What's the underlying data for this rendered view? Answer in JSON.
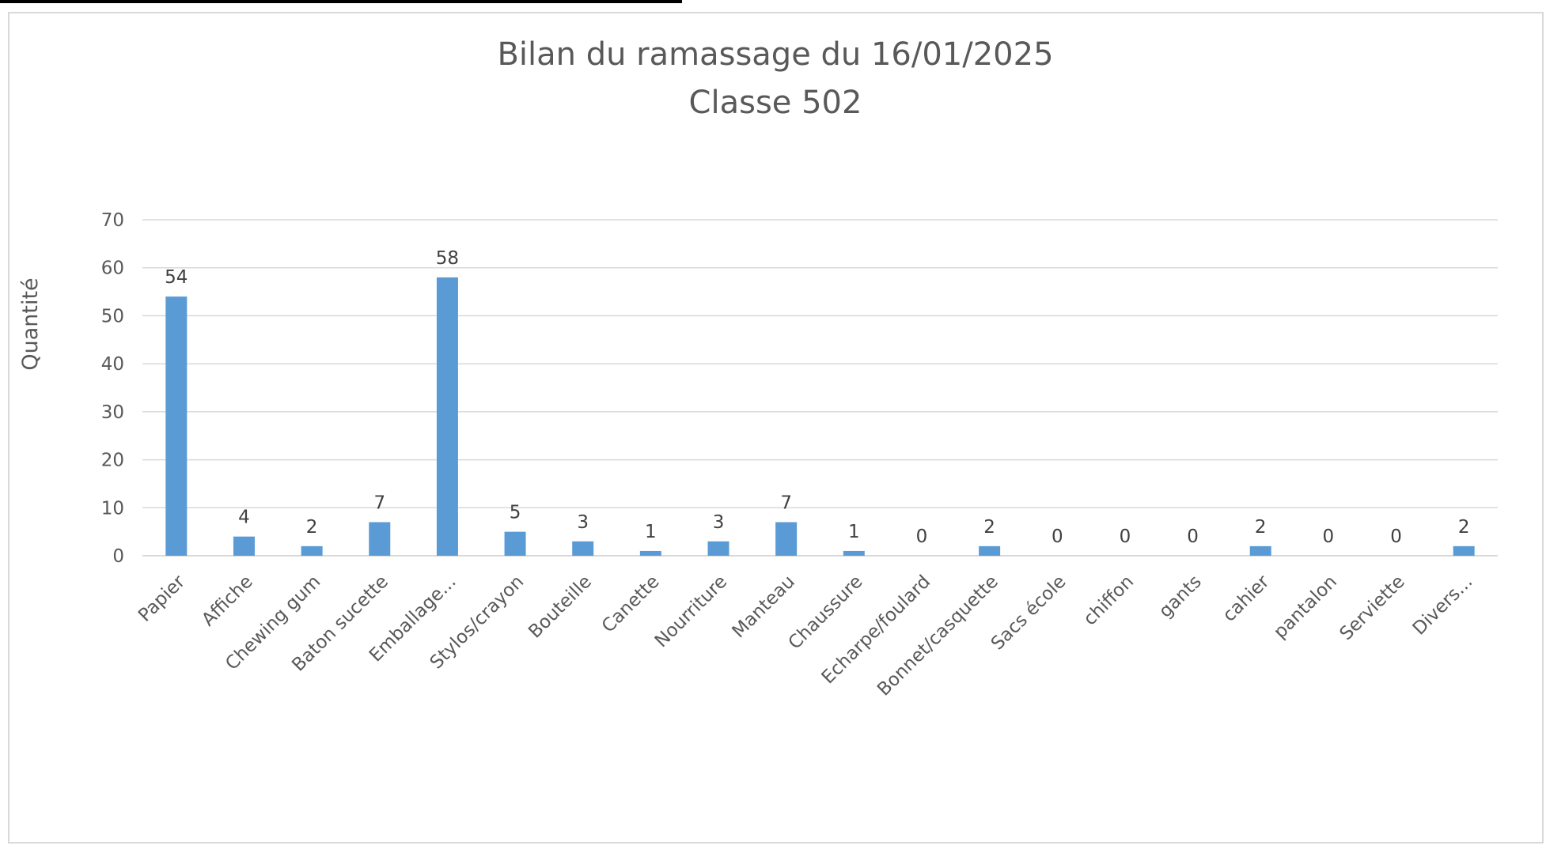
{
  "chart_data": {
    "type": "bar",
    "title": "Bilan du ramassage du 16/01/2025",
    "subtitle": "Classe 502",
    "xlabel": "",
    "ylabel": "Quantité",
    "ylim": [
      0,
      70
    ],
    "yticks": [
      0,
      10,
      20,
      30,
      40,
      50,
      60,
      70
    ],
    "grid": true,
    "legend": "none",
    "bar_color": "#5b9bd5",
    "categories": [
      "Papier",
      "Affiche",
      "Chewing gum",
      "Baton sucette",
      "Emballage...",
      "Stylos/crayon",
      "Bouteille",
      "Canette",
      "Nourriture",
      "Manteau",
      "Chaussure",
      "Echarpe/foulard",
      "Bonnet/casquette",
      "Sacs école",
      "chiffon",
      "gants",
      "cahier",
      "pantalon",
      "Serviette",
      "Divers..."
    ],
    "values": [
      54,
      4,
      2,
      7,
      58,
      5,
      3,
      1,
      3,
      7,
      1,
      0,
      2,
      0,
      0,
      0,
      2,
      0,
      0,
      2
    ]
  }
}
